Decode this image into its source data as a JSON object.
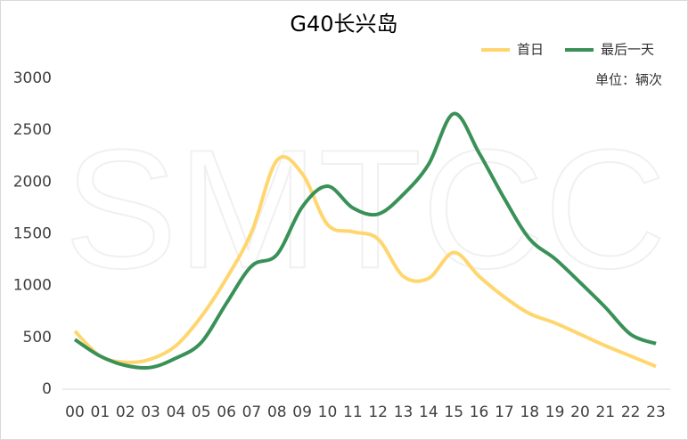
{
  "chart_data": {
    "type": "line",
    "title": "G40长兴岛",
    "unit_note": "单位：辆次",
    "watermark": "SMTCC",
    "categories": [
      "00",
      "01",
      "02",
      "03",
      "04",
      "05",
      "06",
      "07",
      "08",
      "09",
      "10",
      "11",
      "12",
      "13",
      "14",
      "15",
      "16",
      "17",
      "18",
      "19",
      "20",
      "21",
      "22",
      "23"
    ],
    "series": [
      {
        "name": "首日",
        "color": "#ffd66e",
        "values": [
          560,
          320,
          260,
          290,
          420,
          700,
          1070,
          1520,
          2210,
          2080,
          1590,
          1520,
          1450,
          1090,
          1070,
          1320,
          1090,
          890,
          730,
          640,
          530,
          420,
          320,
          220
        ]
      },
      {
        "name": "最后一天",
        "color": "#3a9158",
        "values": [
          480,
          320,
          230,
          210,
          300,
          450,
          830,
          1190,
          1300,
          1760,
          1960,
          1750,
          1690,
          1880,
          2170,
          2660,
          2280,
          1840,
          1450,
          1260,
          1030,
          790,
          530,
          440
        ]
      }
    ],
    "ylim": [
      0,
      3000
    ],
    "yticks": [
      0,
      500,
      1000,
      1500,
      2000,
      2500,
      3000
    ],
    "grid": false,
    "legend": "top-right",
    "smooth": true
  }
}
